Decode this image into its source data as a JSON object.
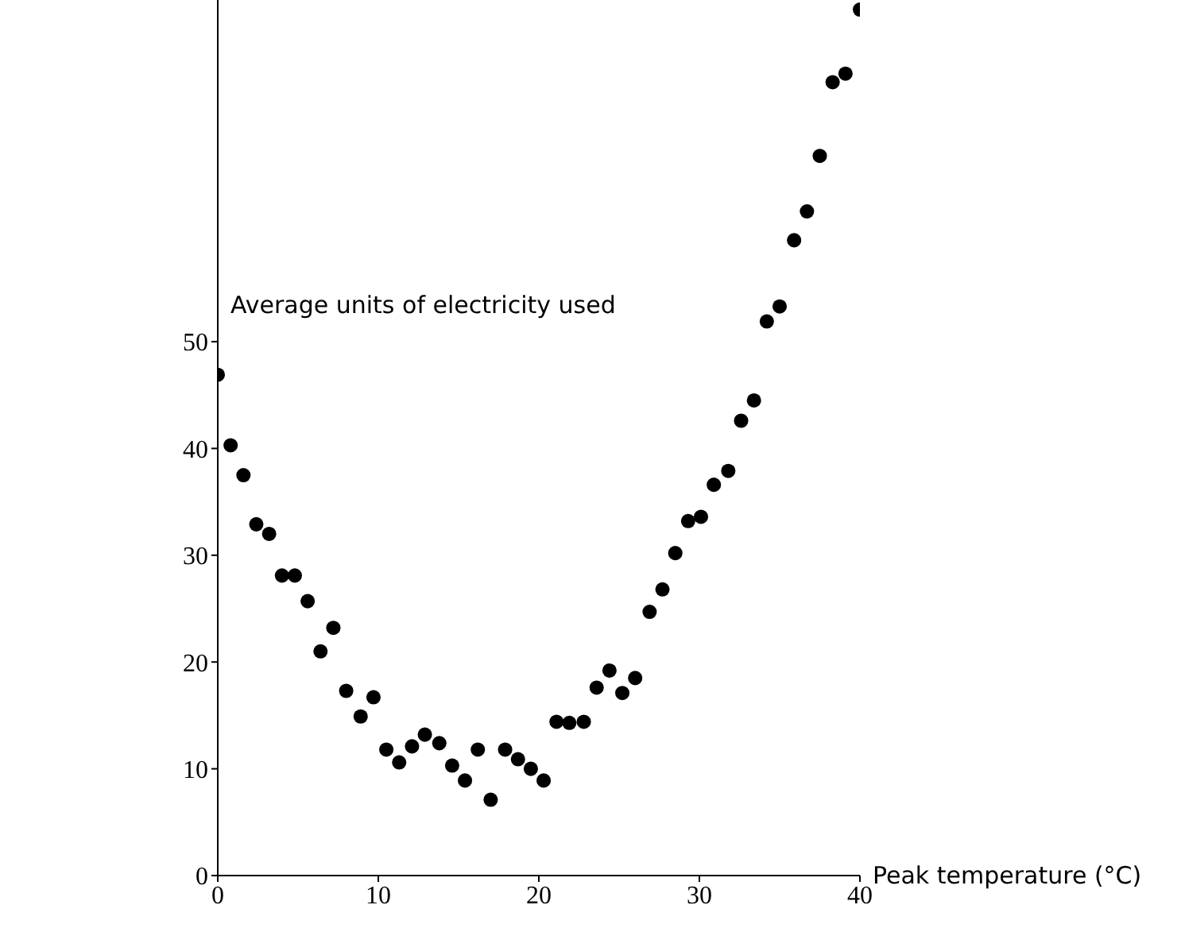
{
  "chart_data": {
    "type": "scatter",
    "xlabel": "Peak temperature (°C)",
    "ylabel": "Average units of electricity used",
    "x": [
      0,
      0.8,
      1.6,
      2.4,
      3.2,
      4,
      4.8,
      5.6,
      6.4,
      7.2,
      8,
      8.9,
      9.7,
      10.5,
      11.3,
      12.1,
      12.9,
      13.8,
      14.6,
      15.4,
      16.2,
      17,
      17.9,
      18.7,
      19.5,
      20.3,
      21.1,
      21.9,
      22.8,
      23.6,
      24.4,
      25.2,
      26,
      26.9,
      27.7,
      28.5,
      29.3,
      30.1,
      30.9,
      31.8,
      32.6,
      33.4,
      34.2,
      35,
      35.9,
      36.7,
      37.5,
      38.3,
      39.1,
      40
    ],
    "series": [
      {
        "color": "#000000",
        "values": [
          46.9,
          40.3,
          37.5,
          32.9,
          32,
          28.1,
          28.1,
          25.7,
          21,
          23.2,
          17.3,
          14.9,
          16.7,
          11.8,
          10.6,
          12.1,
          13.2,
          12.4,
          10.3,
          8.9,
          11.8,
          7.1,
          11.8,
          10.9,
          10,
          8.9,
          14.4,
          14.3,
          14.4,
          17.6,
          19.2,
          17.1,
          18.5,
          24.7,
          26.8,
          30.2,
          33.2,
          33.6,
          36.6,
          37.9,
          42.6,
          44.5,
          51.9,
          53.3,
          59.5,
          62.2,
          67.4,
          74.3,
          75.1,
          81.1
        ]
      }
    ],
    "xlim": [
      0,
      40
    ],
    "xticks": [
      0,
      10,
      20,
      30,
      40
    ],
    "ylim": [
      0,
      82
    ],
    "yticks": [
      0,
      10,
      20,
      30,
      40,
      50
    ],
    "grid": false,
    "legend": false,
    "marker": "circle"
  }
}
